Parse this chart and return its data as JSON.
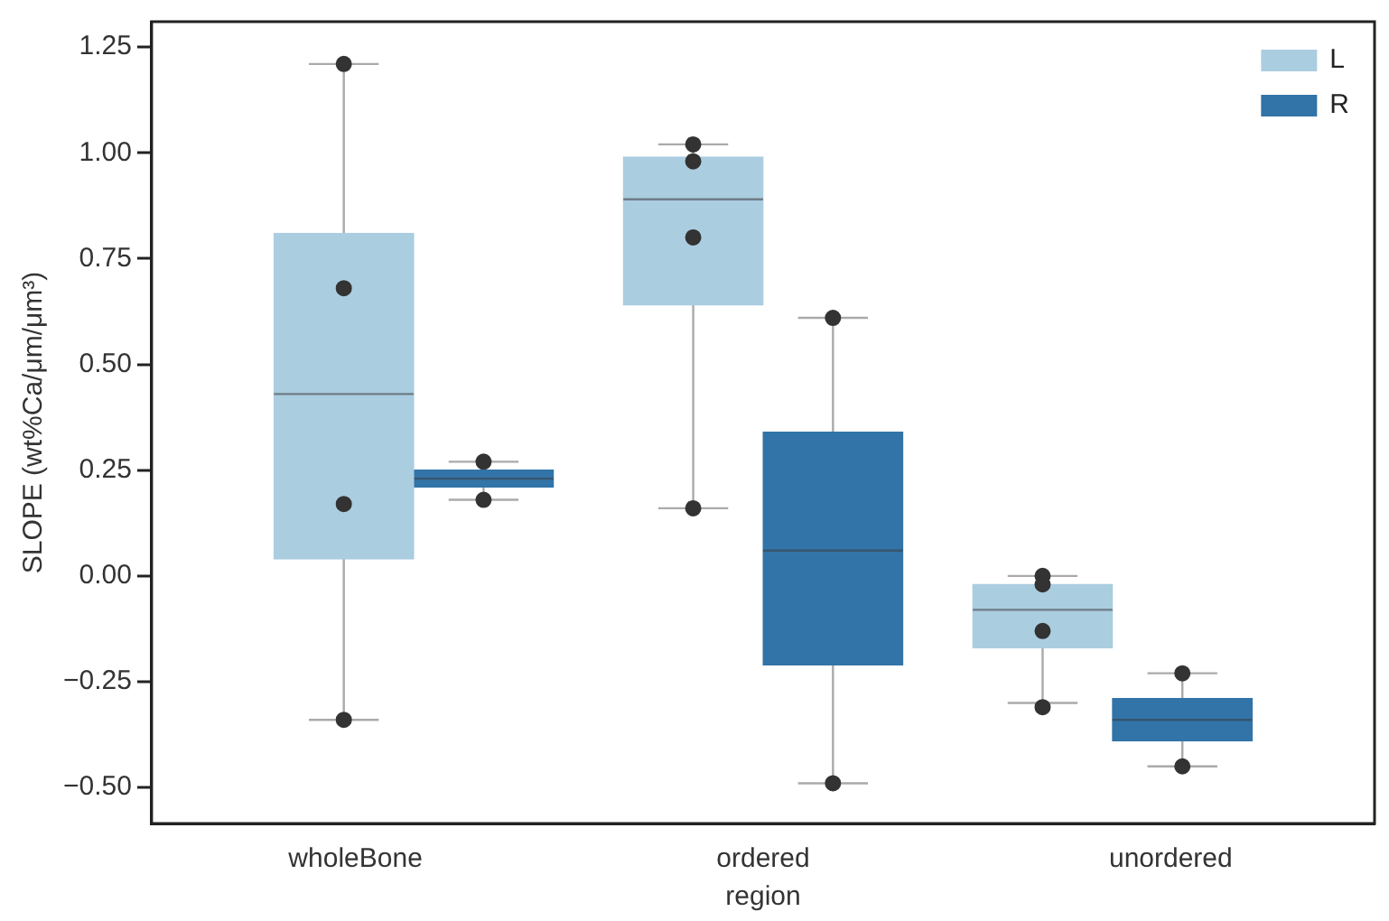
{
  "chart_data": {
    "type": "box",
    "xlabel": "region",
    "ylabel": "SLOPE (wt%Ca/μm/μm³)",
    "categories": [
      "wholeBone",
      "ordered",
      "unordered"
    ],
    "ylim": [
      -0.585,
      1.31
    ],
    "yticks": [
      {
        "value": -0.5,
        "label": "−0.50"
      },
      {
        "value": -0.25,
        "label": "−0.25"
      },
      {
        "value": 0,
        "label": "0.00"
      },
      {
        "value": 0.25,
        "label": "0.25"
      },
      {
        "value": 0.5,
        "label": "0.50"
      },
      {
        "value": 0.75,
        "label": "0.75"
      },
      {
        "value": 1,
        "label": "1.00"
      },
      {
        "value": 1.25,
        "label": "1.25"
      }
    ],
    "grid": false,
    "legend": "top right",
    "series": [
      {
        "name": "L",
        "color": "#abcde0",
        "boxes": [
          {
            "low": -0.34,
            "q1": 0.04,
            "median": 0.43,
            "q3": 0.81,
            "high": 1.21
          },
          {
            "low": 0.16,
            "q1": 0.64,
            "median": 0.89,
            "q3": 0.99,
            "high": 1.02
          },
          {
            "low": -0.3,
            "q1": -0.17,
            "median": -0.08,
            "q3": -0.02,
            "high": 0.0
          }
        ]
      },
      {
        "name": "R",
        "color": "#3274a8",
        "boxes": [
          {
            "low": 0.18,
            "q1": 0.21,
            "median": 0.23,
            "q3": 0.25,
            "high": 0.27
          },
          {
            "low": -0.49,
            "q1": -0.21,
            "median": 0.06,
            "q3": 0.34,
            "high": 0.61
          },
          {
            "low": -0.45,
            "q1": -0.39,
            "median": -0.34,
            "q3": -0.29,
            "high": -0.23
          }
        ]
      },
      {
        "type": "scatter",
        "color": "#333333",
        "x": [
          "wholeBone",
          "wholeBone",
          "wholeBone",
          "wholeBone",
          "ordered",
          "ordered",
          "ordered",
          "ordered",
          "unordered",
          "unordered",
          "unordered",
          "unordered"
        ],
        "values": [
          1.21,
          0.68,
          0.17,
          -0.34,
          1.02,
          0.98,
          0.8,
          0.16,
          0.0,
          -0.02,
          -0.13,
          -0.31
        ]
      },
      {
        "type": "scatter",
        "color": "#333333",
        "x": [
          "wholeBone",
          "wholeBone",
          "ordered",
          "ordered",
          "unordered",
          "unordered"
        ],
        "values": [
          0.27,
          0.18,
          0.61,
          -0.49,
          -0.23,
          -0.45
        ]
      }
    ]
  }
}
